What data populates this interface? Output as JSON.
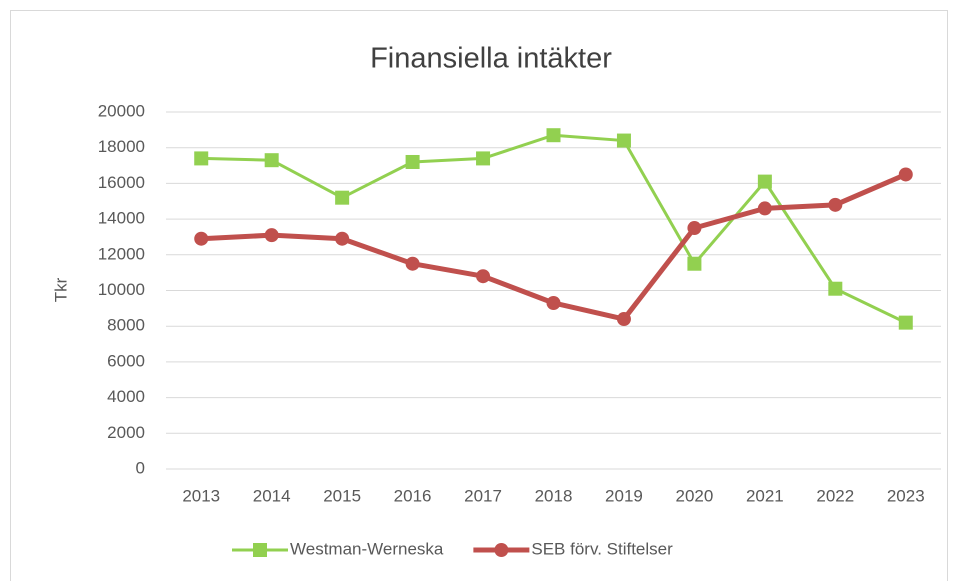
{
  "chart_data": {
    "type": "line",
    "title": "Finansiella intäkter",
    "y_label": "Tkr",
    "categories": [
      "2013",
      "2014",
      "2015",
      "2016",
      "2017",
      "2018",
      "2019",
      "2020",
      "2021",
      "2022",
      "2023"
    ],
    "series": [
      {
        "name": "Westman-Werneska",
        "color": "#92d050",
        "marker": "square",
        "values": [
          17400,
          17300,
          15200,
          17200,
          17400,
          18700,
          18400,
          11500,
          16100,
          10100,
          8200
        ]
      },
      {
        "name": "SEB förv. Stiftelser",
        "color": "#c0504d",
        "marker": "circle",
        "values": [
          12900,
          13100,
          12900,
          11500,
          10800,
          9300,
          8400,
          13500,
          14600,
          14800,
          16500
        ]
      }
    ],
    "ylim": [
      0,
      20000
    ],
    "yticks": [
      0,
      2000,
      4000,
      6000,
      8000,
      10000,
      12000,
      14000,
      16000,
      18000,
      20000
    ],
    "grid": true,
    "legend": "bottom"
  }
}
